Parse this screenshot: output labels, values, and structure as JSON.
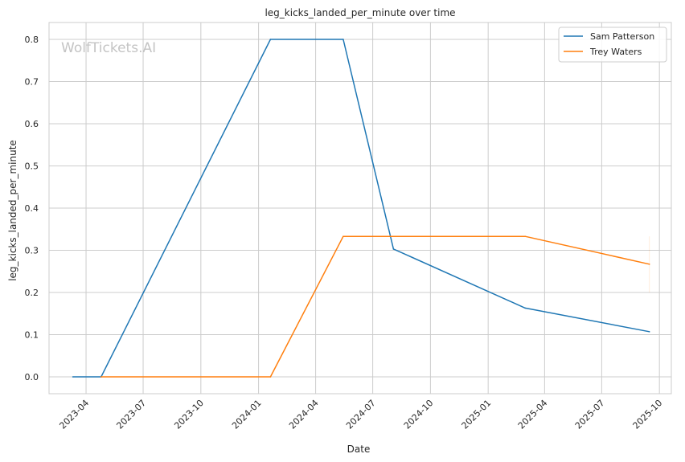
{
  "chart_data": {
    "type": "line",
    "title": "leg_kicks_landed_per_minute over time",
    "xlabel": "Date",
    "ylabel": "leg_kicks_landed_per_minute",
    "watermark": "WolfTickets.AI",
    "x_ticks": [
      "2023-04",
      "2023-07",
      "2023-10",
      "2024-01",
      "2024-04",
      "2024-07",
      "2024-10",
      "2025-01",
      "2025-04",
      "2025-07",
      "2025-10"
    ],
    "y_ticks": [
      "0.0",
      "0.1",
      "0.2",
      "0.3",
      "0.4",
      "0.5",
      "0.6",
      "0.7",
      "0.8"
    ],
    "xlim": [
      "2023-02-01",
      "2025-10-20"
    ],
    "ylim": [
      -0.04,
      0.84
    ],
    "grid": true,
    "legend_position": "top-right",
    "series": [
      {
        "name": "Sam Patterson",
        "color": "#1f77b4",
        "points": [
          {
            "x": "2023-03-11",
            "y": 0.0
          },
          {
            "x": "2023-04-25",
            "y": 0.0
          },
          {
            "x": "2024-01-20",
            "y": 0.8
          },
          {
            "x": "2024-05-15",
            "y": 0.8
          },
          {
            "x": "2024-08-03",
            "y": 0.303
          },
          {
            "x": "2025-03-01",
            "y": 0.163
          },
          {
            "x": "2025-09-15",
            "y": 0.107
          }
        ]
      },
      {
        "name": "Trey Waters",
        "color": "#ff7f0e",
        "points": [
          {
            "x": "2023-04-25",
            "y": 0.0
          },
          {
            "x": "2024-01-20",
            "y": 0.0
          },
          {
            "x": "2024-05-15",
            "y": 0.333
          },
          {
            "x": "2025-03-01",
            "y": 0.333
          },
          {
            "x": "2025-09-15",
            "y": 0.267
          }
        ]
      }
    ]
  }
}
